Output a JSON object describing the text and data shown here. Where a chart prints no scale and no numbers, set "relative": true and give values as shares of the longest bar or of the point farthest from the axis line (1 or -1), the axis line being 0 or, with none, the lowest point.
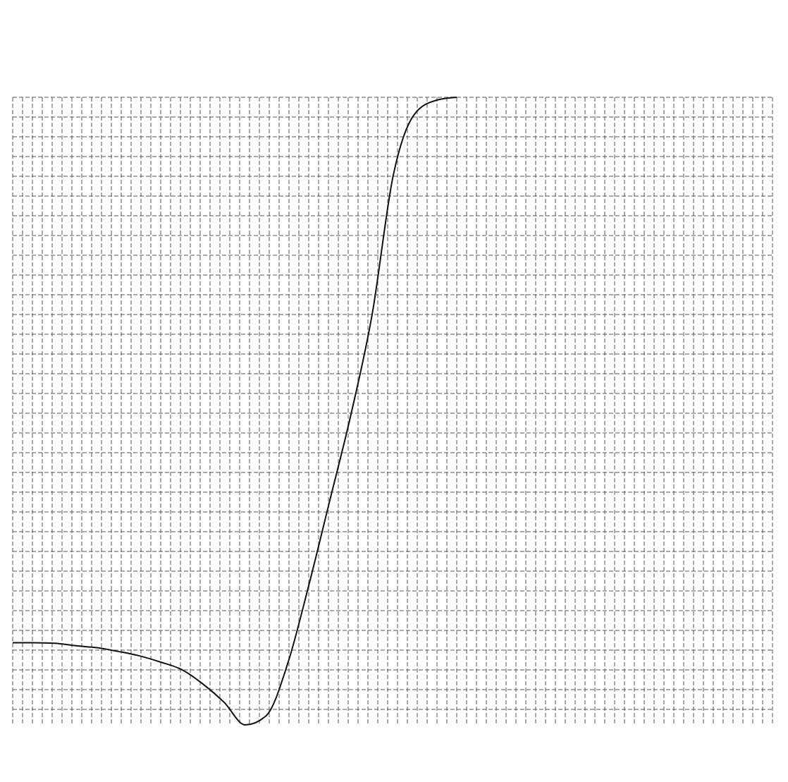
{
  "chart_data": {
    "type": "line",
    "relative": true,
    "grid": true,
    "marker": "none",
    "line_style": "solid",
    "categories": [
      null,
      null,
      null,
      null,
      null,
      null,
      null,
      null,
      null,
      null,
      null,
      null,
      null,
      null,
      null,
      null,
      null,
      null,
      null,
      null,
      null,
      null,
      null,
      null,
      null,
      null,
      null,
      null,
      null,
      null,
      null,
      null,
      null,
      null,
      null,
      null,
      null
    ],
    "series": [
      {
        "color": "#111111",
        "values": [
          0.131,
          0.131,
          0.13,
          0.126,
          0.123,
          0.117,
          0.11,
          0.1,
          0.088,
          0.065,
          0.036,
          0,
          0.015,
          0.097,
          0.222,
          0.358,
          0.495,
          0.654,
          0.876,
          0.973,
          0.995,
          1,
          null,
          null,
          null,
          null,
          null,
          null,
          null,
          null,
          null,
          null,
          null,
          null,
          null,
          null,
          null
        ]
      }
    ]
  }
}
